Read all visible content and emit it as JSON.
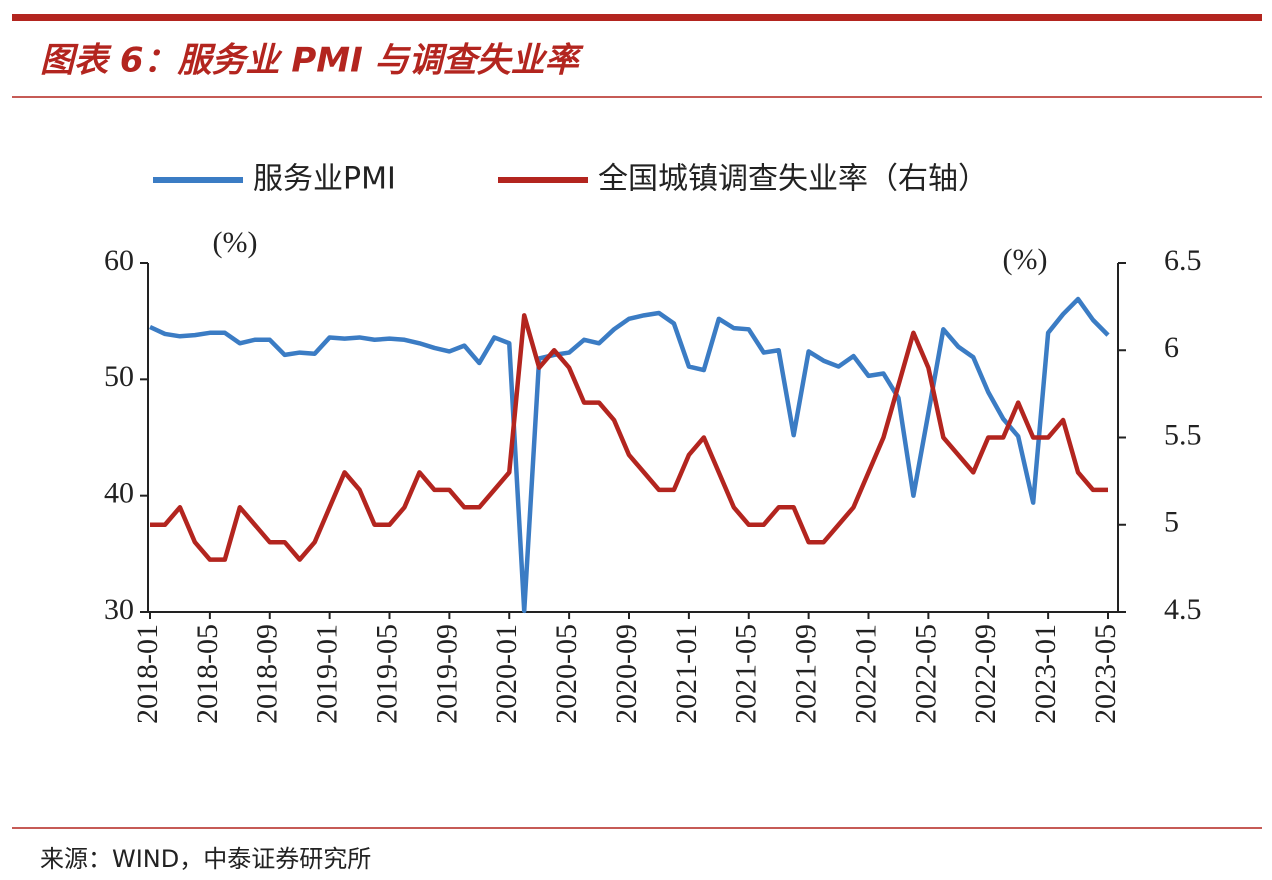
{
  "page": {
    "title": "图表 6：服务业 PMI 与调查失业率",
    "source": "来源：WIND，中泰证券研究所"
  },
  "chart_data": {
    "type": "line",
    "y_unit": "(%)",
    "y2_unit": "(%)",
    "categories": [
      "2018-01",
      null,
      null,
      null,
      "2018-05",
      null,
      null,
      null,
      "2018-09",
      null,
      null,
      null,
      "2019-01",
      null,
      null,
      null,
      "2019-05",
      null,
      null,
      null,
      "2019-09",
      null,
      null,
      null,
      "2020-01",
      null,
      null,
      null,
      "2020-05",
      null,
      null,
      null,
      "2020-09",
      null,
      null,
      null,
      "2021-01",
      null,
      null,
      null,
      "2021-05",
      null,
      null,
      null,
      "2021-09",
      null,
      null,
      null,
      "2022-01",
      null,
      null,
      null,
      "2022-05",
      null,
      null,
      null,
      "2022-09",
      null,
      null,
      null,
      "2023-01",
      null,
      null,
      null,
      "2023-05"
    ],
    "series": [
      {
        "name": "服务业PMI",
        "color": "#3b7cc4",
        "axis": "y",
        "values": [
          54.5,
          53.9,
          53.7,
          53.8,
          54.0,
          54.0,
          53.1,
          53.4,
          53.4,
          52.1,
          52.3,
          52.2,
          53.6,
          53.5,
          53.6,
          53.4,
          53.5,
          53.4,
          53.1,
          52.7,
          52.4,
          52.9,
          51.4,
          53.6,
          53.1,
          30.1,
          51.8,
          52.1,
          52.3,
          53.4,
          53.1,
          54.3,
          55.2,
          55.5,
          55.7,
          54.8,
          51.1,
          50.8,
          55.2,
          54.4,
          54.3,
          52.3,
          52.5,
          45.2,
          52.4,
          51.6,
          51.1,
          52.0,
          50.3,
          50.5,
          48.4,
          40.0,
          47.1,
          54.3,
          52.8,
          51.9,
          48.9,
          46.6,
          45.1,
          39.4,
          54.0,
          55.6,
          56.9,
          55.1,
          53.8
        ]
      },
      {
        "name": "全国城镇调查失业率（右轴）",
        "color": "#b3251f",
        "axis": "y2",
        "values": [
          5.0,
          5.0,
          5.1,
          4.9,
          4.8,
          4.8,
          5.1,
          5.0,
          4.9,
          4.9,
          4.8,
          4.9,
          5.1,
          5.3,
          5.2,
          5.0,
          5.0,
          5.1,
          5.3,
          5.2,
          5.2,
          5.1,
          5.1,
          5.2,
          5.3,
          6.2,
          5.9,
          6.0,
          5.9,
          5.7,
          5.7,
          5.6,
          5.4,
          5.3,
          5.2,
          5.2,
          5.4,
          5.5,
          5.3,
          5.1,
          5.0,
          5.0,
          5.1,
          5.1,
          4.9,
          4.9,
          5.0,
          5.1,
          5.3,
          5.5,
          5.8,
          6.1,
          5.9,
          5.5,
          5.4,
          5.3,
          5.5,
          5.5,
          5.7,
          5.5,
          5.5,
          5.6,
          5.3,
          5.2,
          5.2
        ]
      }
    ],
    "ylim": [
      30,
      60
    ],
    "yticks": [
      30,
      40,
      50,
      60
    ],
    "y2lim": [
      4.5,
      6.5
    ],
    "y2ticks": [
      {
        "value": 4.5,
        "label": "4.5"
      },
      5,
      {
        "value": 5.5,
        "label": "5.5"
      },
      6,
      {
        "value": 6.5,
        "label": "6.5"
      }
    ],
    "legend": "top"
  }
}
